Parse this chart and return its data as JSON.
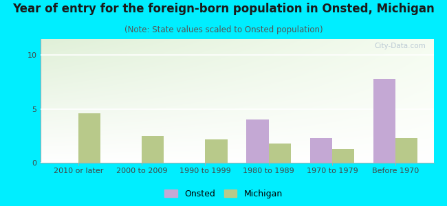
{
  "title": "Year of entry for the foreign-born population in Onsted, Michigan",
  "subtitle": "(Note: State values scaled to Onsted population)",
  "categories": [
    "2010 or later",
    "2000 to 2009",
    "1990 to 1999",
    "1980 to 1989",
    "1970 to 1979",
    "Before 1970"
  ],
  "onsted_values": [
    0,
    0,
    0,
    4.0,
    2.3,
    7.8
  ],
  "michigan_values": [
    4.6,
    2.5,
    2.2,
    1.8,
    1.3,
    2.3
  ],
  "onsted_color": "#c4a8d4",
  "michigan_color": "#b8c98a",
  "ylim": [
    0,
    11.5
  ],
  "yticks": [
    0,
    5,
    10
  ],
  "background_color": "#00eeff",
  "plot_bg_color_topleft": "#e0f0d8",
  "plot_bg_color_topright": "#f0f8ee",
  "plot_bg_color_bottom": "#ffffff",
  "bar_width": 0.35,
  "title_fontsize": 12,
  "subtitle_fontsize": 8.5,
  "tick_fontsize": 8,
  "watermark": "City-Data.com",
  "legend_onsted": "Onsted",
  "legend_michigan": "Michigan"
}
